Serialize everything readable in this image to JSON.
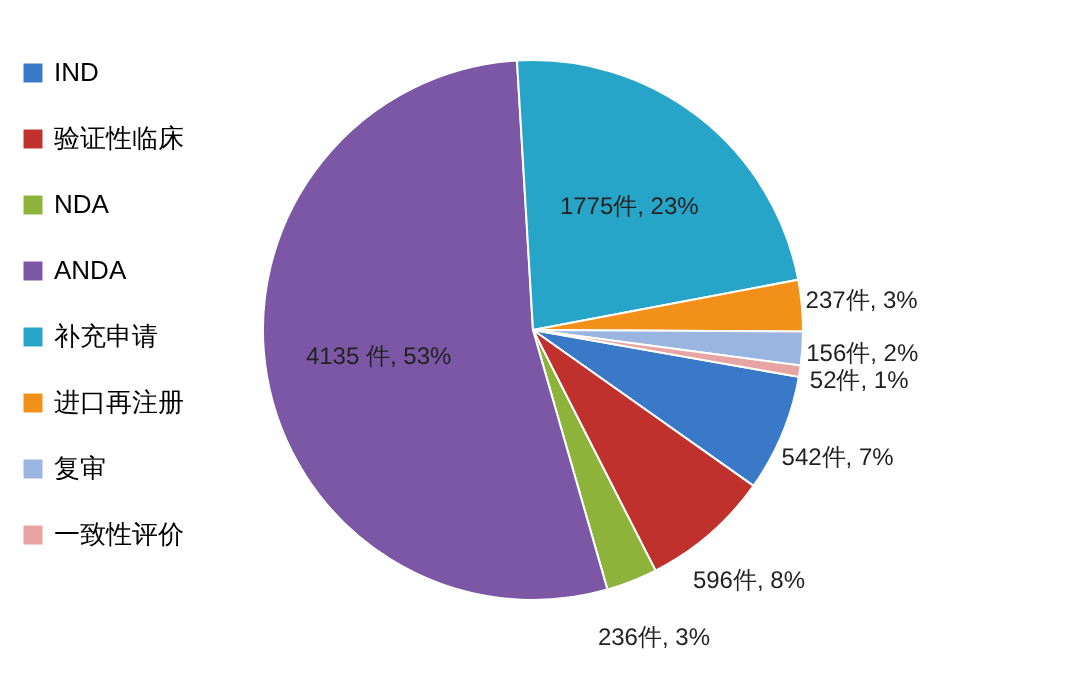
{
  "chart_data": {
    "type": "pie",
    "categories": [
      "IND",
      "验证性临床",
      "NDA",
      "ANDA",
      "补充申请",
      "进口再注册",
      "复审",
      "一致性评价"
    ],
    "values": [
      542,
      596,
      236,
      4135,
      1775,
      237,
      156,
      52
    ],
    "colors": [
      "#3a78c8",
      "#c0302c",
      "#8db33b",
      "#7b57a6",
      "#27a5c8",
      "#f2901a",
      "#9ab6e0",
      "#e8a3a3"
    ],
    "value_labels": [
      "542件, 7%",
      "596件, 8%",
      "236件, 3%",
      "4135 件, 53%",
      "1775件, 23%",
      "237件, 3%",
      "156件, 2%",
      "52件, 1%"
    ],
    "legend": "left"
  }
}
